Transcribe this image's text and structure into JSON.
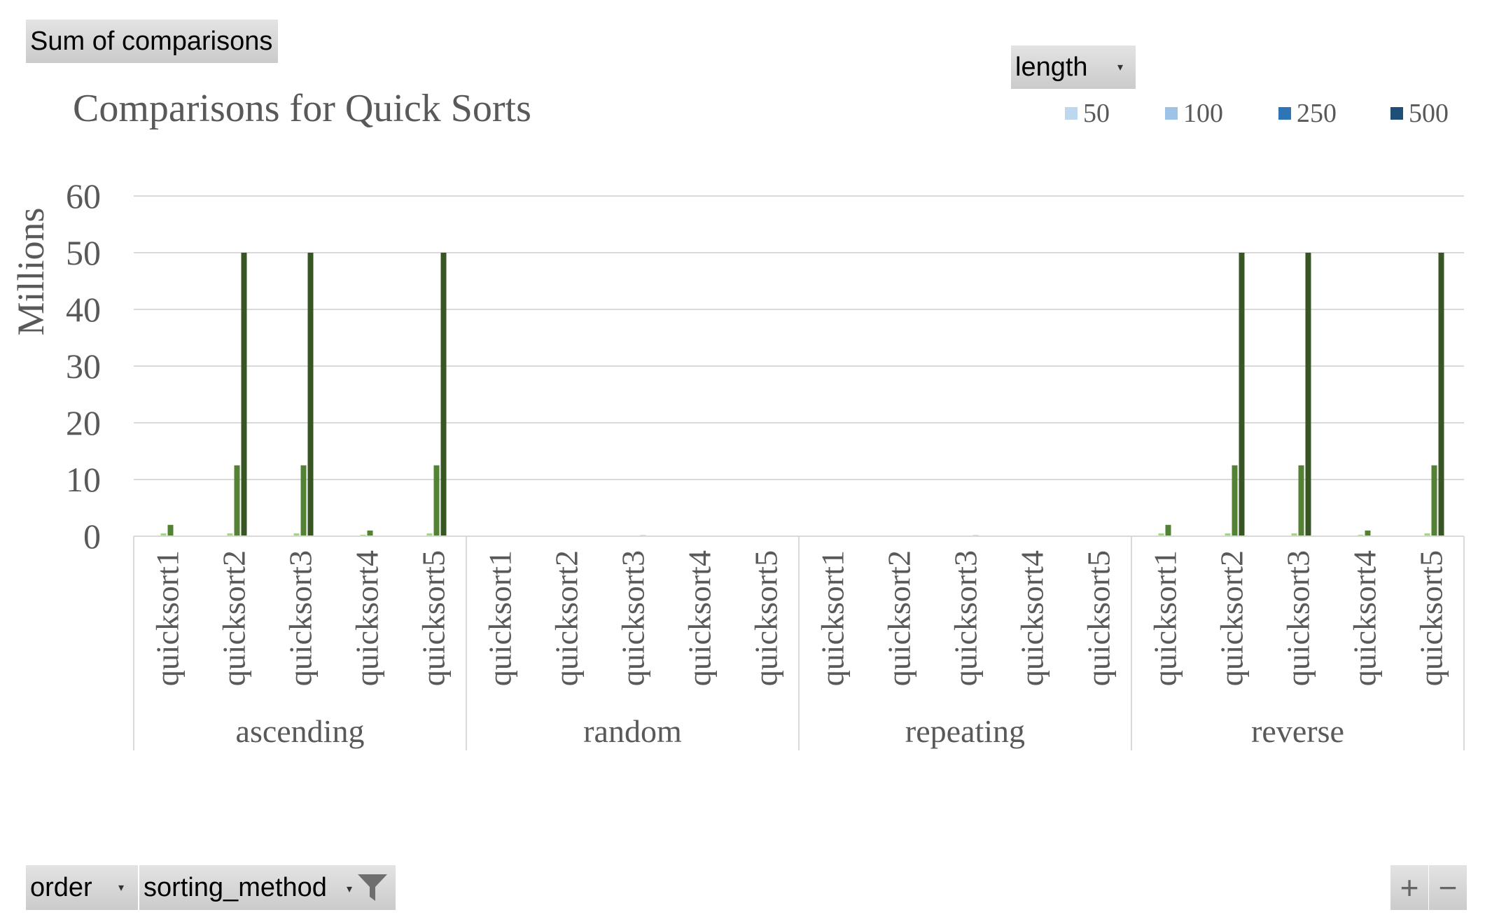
{
  "pivot": {
    "value_field": "Sum of comparisons",
    "legend_field": "length",
    "axis_fields": [
      "order",
      "sorting_method"
    ],
    "zoom_in": "+",
    "zoom_out": "−"
  },
  "chart_data": {
    "type": "bar",
    "title": "Comparisons for Quick Sorts",
    "ylabel": "Millions",
    "xlabel": "",
    "ylim": [
      0,
      60
    ],
    "yticks": [
      0,
      10,
      20,
      30,
      40,
      50,
      60
    ],
    "grid": true,
    "legend_position": "top-right",
    "groups": [
      "ascending",
      "random",
      "repeating",
      "reverse"
    ],
    "categories": [
      "quicksort1",
      "quicksort2",
      "quicksort3",
      "quicksort4",
      "quicksort5"
    ],
    "series": [
      {
        "name": "50",
        "color": "#bdd7ee",
        "bar_color": "#c5e0b4",
        "values": [
          [
            0.02,
            0.02,
            0.02,
            0.01,
            0.02
          ],
          [
            0.001,
            0.001,
            0.001,
            0.001,
            0.001
          ],
          [
            0.001,
            0.001,
            0.001,
            0.001,
            0.001
          ],
          [
            0.02,
            0.02,
            0.02,
            0.01,
            0.02
          ]
        ]
      },
      {
        "name": "100",
        "color": "#9dc3e6",
        "bar_color": "#a9d18e",
        "values": [
          [
            0.5,
            0.5,
            0.5,
            0.25,
            0.5
          ],
          [
            0.01,
            0.01,
            0.02,
            0.01,
            0.01
          ],
          [
            0.01,
            0.01,
            0.02,
            0.01,
            0.01
          ],
          [
            0.5,
            0.5,
            0.5,
            0.25,
            0.5
          ]
        ]
      },
      {
        "name": "250",
        "color": "#2e75b6",
        "bar_color": "#548235",
        "values": [
          [
            2,
            12.5,
            12.5,
            1,
            12.5
          ],
          [
            0.03,
            0.03,
            0.05,
            0.03,
            0.03
          ],
          [
            0.03,
            0.03,
            0.05,
            0.03,
            0.03
          ],
          [
            2,
            12.5,
            12.5,
            1,
            12.5
          ]
        ]
      },
      {
        "name": "500",
        "color": "#1f4e79",
        "bar_color": "#375623",
        "values": [
          [
            0.1,
            50,
            50,
            0.05,
            50
          ],
          [
            0.06,
            0.06,
            0.15,
            0.06,
            0.06
          ],
          [
            0.06,
            0.06,
            0.15,
            0.06,
            0.06
          ],
          [
            0.1,
            50,
            50,
            0.05,
            50
          ]
        ]
      }
    ]
  }
}
